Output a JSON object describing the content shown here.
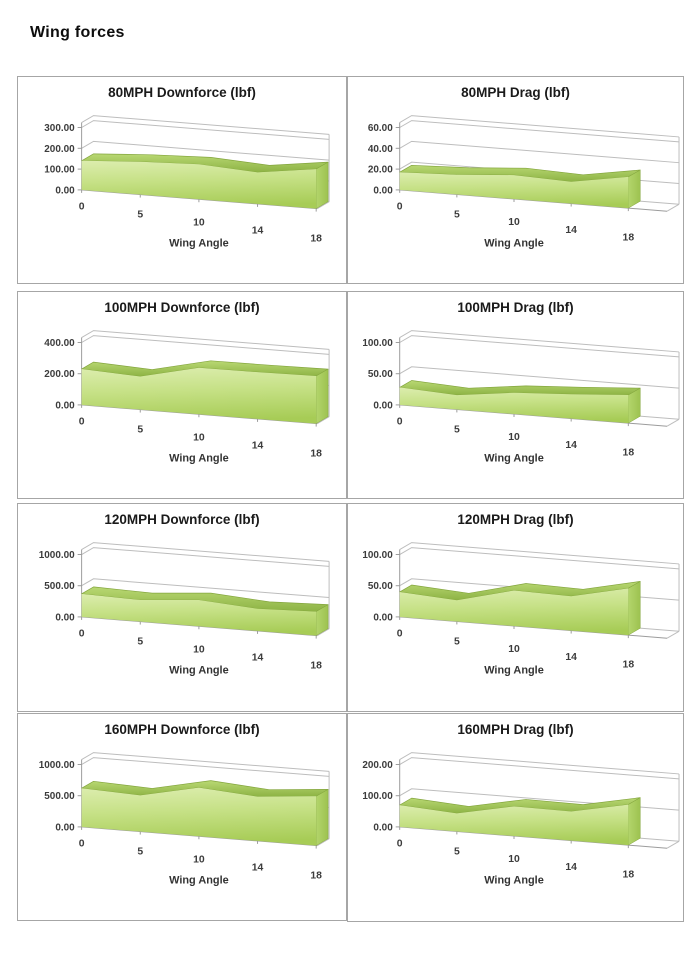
{
  "page": {
    "title": "Wing forces"
  },
  "colors": {
    "area_gradient_top": "#dcedae",
    "area_gradient_mid": "#c6e186",
    "area_gradient_bottom": "#a7cc56",
    "ribbon_light": "#b9d873",
    "ribbon_dark": "#8db344",
    "ribbon_edge": "#84a63e",
    "side_light": "#b3d56c",
    "side_dark": "#9dc250",
    "grid_line": "#bdbdbd",
    "axis_line": "#9c9c9c",
    "tick_text": "#3c3c3c",
    "title_text": "#1a1a1a",
    "cell_border": "#a6a6a6"
  },
  "chart_data": [
    {
      "type": "area",
      "style": "3d",
      "title": "80MPH Downforce (lbf)",
      "xlabel": "Wing Angle",
      "ylabel": "",
      "categories": [
        0,
        5,
        10,
        14,
        18
      ],
      "values": [
        140,
        158,
        168,
        152,
        190
      ],
      "ylim": [
        0,
        300
      ],
      "ytick_labels": [
        "300.00",
        "200.00",
        "100.00",
        "0.00"
      ],
      "grid": true,
      "legend": false
    },
    {
      "type": "area",
      "style": "3d",
      "title": "80MPH Drag (lbf)",
      "xlabel": "Wing Angle",
      "ylabel": "",
      "categories": [
        0,
        5,
        10,
        14,
        18
      ],
      "values": [
        17,
        19,
        23,
        21,
        30
      ],
      "ylim": [
        0,
        60
      ],
      "ytick_labels": [
        "60.00",
        "40.00",
        "20.00",
        "0.00"
      ],
      "grid": true,
      "legend": false
    },
    {
      "type": "area",
      "style": "3d",
      "title": "100MPH Downforce (lbf)",
      "xlabel": "Wing Angle",
      "ylabel": "",
      "categories": [
        0,
        5,
        10,
        14,
        18
      ],
      "values": [
        230,
        212,
        298,
        300,
        305
      ],
      "ylim": [
        0,
        400
      ],
      "ytick_labels": [
        "400.00",
        "200.00",
        "0.00"
      ],
      "grid": true,
      "legend": false
    },
    {
      "type": "area",
      "style": "3d",
      "title": "100MPH Drag (lbf)",
      "xlabel": "Wing Angle",
      "ylabel": "",
      "categories": [
        0,
        5,
        10,
        14,
        18
      ],
      "values": [
        28,
        23,
        34,
        39,
        45
      ],
      "ylim": [
        0,
        100
      ],
      "ytick_labels": [
        "100.00",
        "50.00",
        "0.00"
      ],
      "grid": true,
      "legend": false
    },
    {
      "type": "area",
      "style": "3d",
      "title": "120MPH Downforce (lbf)",
      "xlabel": "Wing Angle",
      "ylabel": "",
      "categories": [
        0,
        5,
        10,
        14,
        18
      ],
      "values": [
        370,
        345,
        420,
        355,
        385
      ],
      "ylim": [
        0,
        1000
      ],
      "ytick_labels": [
        "1000.00",
        "500.00",
        "0.00"
      ],
      "grid": true,
      "legend": false
    },
    {
      "type": "area",
      "style": "3d",
      "title": "120MPH Drag (lbf)",
      "xlabel": "Wing Angle",
      "ylabel": "",
      "categories": [
        0,
        5,
        10,
        14,
        18
      ],
      "values": [
        40,
        34,
        57,
        55,
        75
      ],
      "ylim": [
        0,
        100
      ],
      "ytick_labels": [
        "100.00",
        "50.00",
        "0.00"
      ],
      "grid": true,
      "legend": false
    },
    {
      "type": "area",
      "style": "3d",
      "title": "160MPH Downforce (lbf)",
      "xlabel": "Wing Angle",
      "ylabel": "",
      "categories": [
        0,
        5,
        10,
        14,
        18
      ],
      "values": [
        620,
        580,
        780,
        710,
        790
      ],
      "ylim": [
        0,
        1000
      ],
      "ytick_labels": [
        "1000.00",
        "500.00",
        "0.00"
      ],
      "grid": true,
      "legend": false
    },
    {
      "type": "area",
      "style": "3d",
      "title": "160MPH Drag (lbf)",
      "xlabel": "Wing Angle",
      "ylabel": "",
      "categories": [
        0,
        5,
        10,
        14,
        18
      ],
      "values": [
        70,
        58,
        95,
        93,
        130
      ],
      "ylim": [
        0,
        200
      ],
      "ytick_labels": [
        "200.00",
        "100.00",
        "0.00"
      ],
      "grid": true,
      "legend": false
    }
  ]
}
